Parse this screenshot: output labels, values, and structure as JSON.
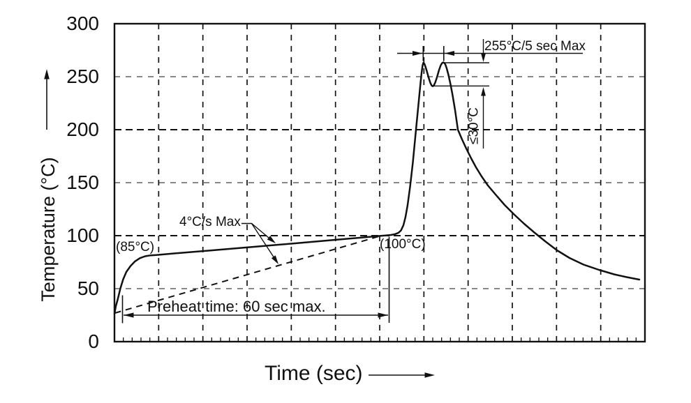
{
  "y_axis": {
    "label": "Temperature (°C)",
    "ticks": [
      "300",
      "250",
      "200",
      "150",
      "100",
      "50",
      "0"
    ]
  },
  "x_axis": {
    "label": "Time (sec)"
  },
  "annotations": {
    "knee_temp": "(85°C)",
    "ramp_rate": "4°C/s Max",
    "preheat_end_temp": "(100°C)",
    "preheat_time": "Preheat time: 60 sec max.",
    "peak_spec": "255°C/5 sec Max",
    "dip_spec": "≤30°C"
  },
  "colors": {
    "ink": "#111111",
    "background": "#ffffff"
  },
  "chart_data": {
    "type": "line",
    "title": "",
    "xlabel": "Time (sec)",
    "ylabel": "Temperature (°C)",
    "ylim": [
      0,
      300
    ],
    "y_ticks": [
      0,
      50,
      100,
      150,
      200,
      250,
      300
    ],
    "x_tick_labels": "none (12 unlabeled grid divisions)",
    "grid": "dashed both axes",
    "legend": "none",
    "series": [
      {
        "name": "reflow temperature profile",
        "style": "solid",
        "x_unit": "grid divisions (time, unlabeled)",
        "points_div_degC": [
          [
            0.0,
            26
          ],
          [
            0.13,
            50
          ],
          [
            0.36,
            71
          ],
          [
            0.69,
            81
          ],
          [
            0.95,
            82
          ],
          [
            2.15,
            86
          ],
          [
            3.41,
            90
          ],
          [
            4.67,
            95
          ],
          [
            5.62,
            98
          ],
          [
            6.0,
            100
          ],
          [
            6.21,
            100
          ],
          [
            6.47,
            105
          ],
          [
            6.62,
            132
          ],
          [
            6.79,
            201
          ],
          [
            6.87,
            230
          ],
          [
            6.99,
            263
          ],
          [
            7.2,
            241
          ],
          [
            7.45,
            263
          ],
          [
            7.62,
            238
          ],
          [
            7.77,
            200
          ],
          [
            8.08,
            172
          ],
          [
            8.46,
            144
          ],
          [
            9.02,
            117
          ],
          [
            9.46,
            100
          ],
          [
            10.01,
            84
          ],
          [
            10.61,
            72
          ],
          [
            11.02,
            66
          ],
          [
            11.54,
            60
          ],
          [
            11.87,
            58
          ]
        ],
        "peak_temperature_degC": 263,
        "dip_between_peaks_degC": 241
      },
      {
        "name": "maximum ramp reference (4°C/s Max)",
        "style": "dashed",
        "points_div_degC": [
          [
            0.01,
            27
          ],
          [
            5.99,
            100
          ]
        ]
      }
    ],
    "annotations": [
      {
        "text": "(85°C)",
        "meaning": "temperature at end of initial fast ramp"
      },
      {
        "text": "4°C/s Max",
        "meaning": "max preheat ramp rate, arrows point to solid profile and dashed reference line"
      },
      {
        "text": "(100°C)",
        "meaning": "temperature at end of preheat"
      },
      {
        "text": "Preheat time: 60 sec max.",
        "meaning": "dimension from profile start to the 100°C point"
      },
      {
        "text": "255°C/5 sec Max",
        "meaning": "max 5 seconds above 255°C, ticks at the two reflow peaks"
      },
      {
        "text": "≤30°C",
        "meaning": "max temperature dip below peak between the two reflow peaks"
      }
    ]
  }
}
